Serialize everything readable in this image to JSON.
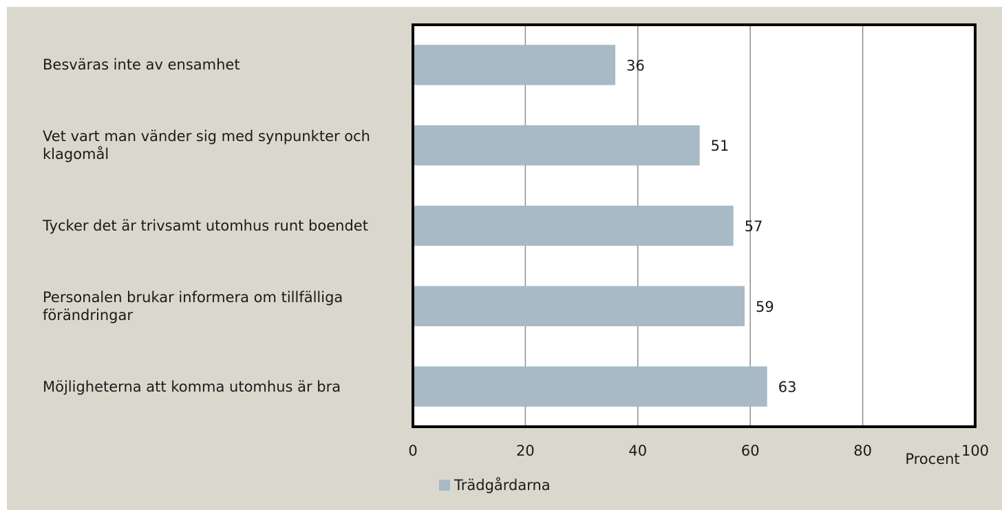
{
  "chart_data": {
    "type": "bar",
    "orientation": "horizontal",
    "categories": [
      "Besväras inte av ensamhet",
      "Vet vart man vänder sig med synpunkter och klagomål",
      "Tycker det är trivsamt utomhus runt boendet",
      "Personalen brukar informera om tillfälliga förändringar",
      "Möjligheterna att komma utomhus är bra"
    ],
    "series": [
      {
        "name": "Trädgårdarna",
        "color": "#a7bac5",
        "values": [
          36,
          51,
          57,
          59,
          63
        ]
      }
    ],
    "xlim": [
      0,
      100
    ],
    "xticks": [
      0,
      20,
      40,
      60,
      80,
      100
    ],
    "xlabel": "Procent",
    "grid": true,
    "legend": "bottom"
  }
}
